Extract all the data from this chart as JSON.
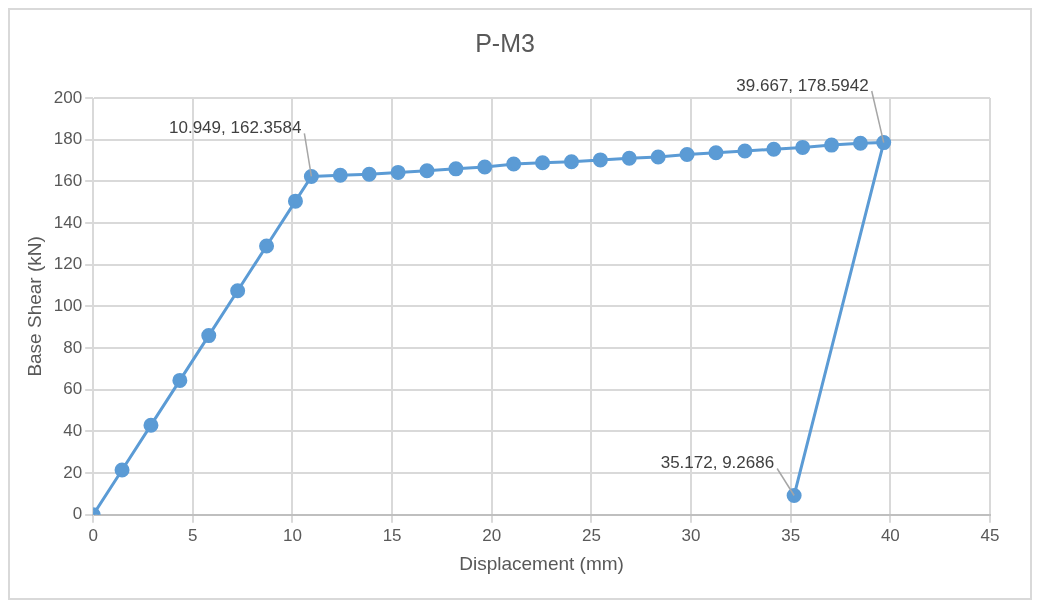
{
  "chart_data": {
    "type": "line",
    "title": "P-M3",
    "xlabel": "Displacement (mm)",
    "ylabel": "Base Shear (kN)",
    "series": [
      {
        "color": "#5b9bd5",
        "x": [
          0,
          1.45,
          2.9,
          4.35,
          5.8,
          7.25,
          8.7,
          10.15,
          10.949,
          12.4,
          13.85,
          15.3,
          16.75,
          18.2,
          19.65,
          21.1,
          22.55,
          24,
          25.45,
          26.9,
          28.35,
          29.8,
          31.25,
          32.7,
          34.15,
          35.6,
          37.05,
          38.5,
          39.667,
          35.172
        ],
        "values": [
          0,
          21.5,
          43,
          64.5,
          86,
          107.5,
          129,
          150.5,
          162.3584,
          162.9,
          163.4,
          164.3,
          165.1,
          166,
          166.9,
          168.3,
          168.9,
          169.4,
          170.3,
          171.1,
          171.7,
          172.9,
          173.7,
          174.6,
          175.4,
          176.3,
          177.4,
          178.3,
          178.5942,
          9.2686
        ]
      }
    ],
    "xlim": [
      0,
      45
    ],
    "xticks": [
      0,
      5,
      10,
      15,
      20,
      25,
      30,
      35,
      40,
      45
    ],
    "ylim": [
      0,
      200
    ],
    "yticks": [
      0,
      20,
      40,
      60,
      80,
      100,
      120,
      140,
      160,
      180,
      200
    ],
    "grid": true,
    "legend": false,
    "marker": "circle",
    "line_style": "solid",
    "annotations": [
      {
        "text": "10.949, 162.3584",
        "x": 10.949,
        "y": 162.3584
      },
      {
        "text": "39.667, 178.5942",
        "x": 39.667,
        "y": 178.5942
      },
      {
        "text": "35.172, 9.2686",
        "x": 35.172,
        "y": 9.2686
      }
    ]
  }
}
